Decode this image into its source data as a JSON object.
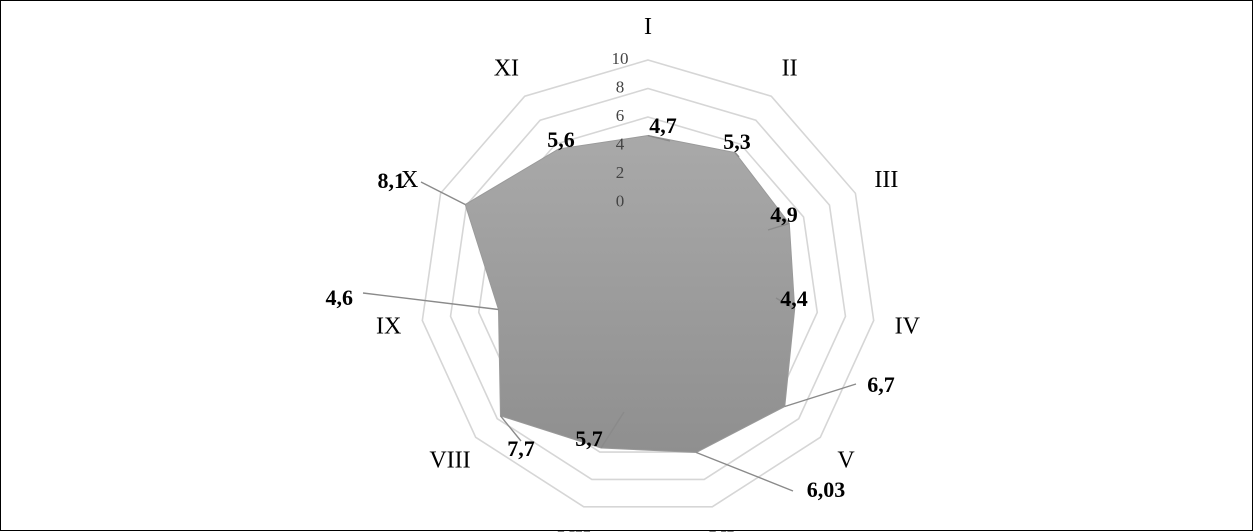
{
  "chart_data": {
    "type": "radar",
    "title": "",
    "categories": [
      "I",
      "II",
      "III",
      "IV",
      "V",
      "VI",
      "VII",
      "VIII",
      "IX",
      "X",
      "XI"
    ],
    "series": [
      {
        "values": [
          4.7,
          5.3,
          4.9,
          4.4,
          6.7,
          6.03,
          5.7,
          7.7,
          4.6,
          8.1,
          5.6
        ],
        "labels": [
          "4,7",
          "5,3",
          "4,9",
          "4,4",
          "6,7",
          "6,03",
          "5,7",
          "7,7",
          "4,6",
          "8,1",
          "5,6"
        ]
      }
    ],
    "r_ticks": [
      "0",
      "2",
      "4",
      "6",
      "8",
      "10"
    ],
    "r_axis_min": -6,
    "r_axis_max": 10,
    "grid": true,
    "legend": "none",
    "colors": {
      "fill": "#9c9c9c",
      "grid": "#d6d6d6",
      "leader": "#8a8a8a"
    }
  }
}
